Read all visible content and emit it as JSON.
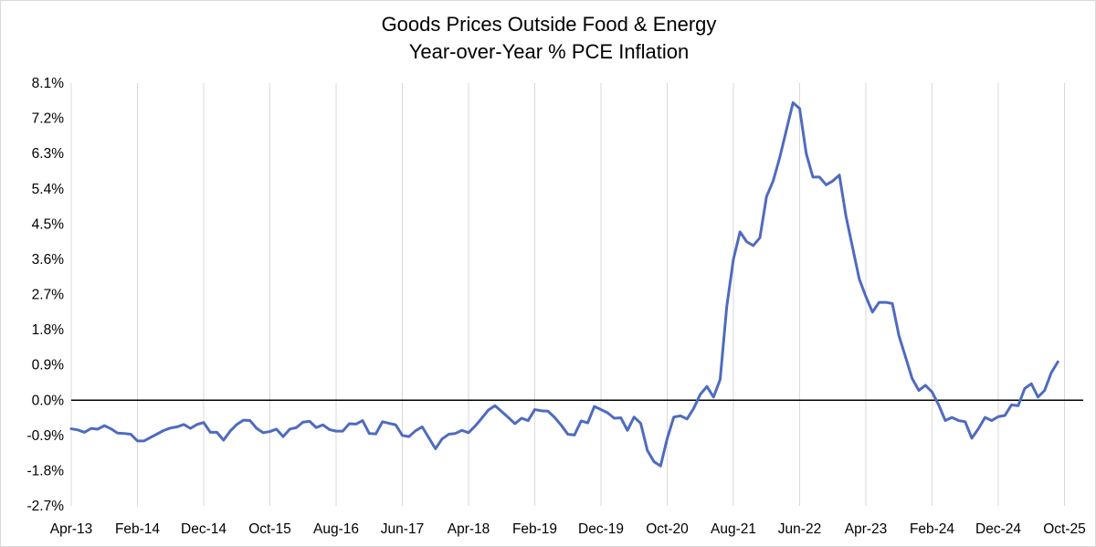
{
  "chart_data": {
    "type": "line",
    "title": [
      "Goods Prices Outside Food & Energy",
      "Year-over-Year % PCE Inflation"
    ],
    "xlabel": "",
    "ylabel": "",
    "x_tick_labels": [
      "Apr-13",
      "Feb-14",
      "Dec-14",
      "Oct-15",
      "Aug-16",
      "Jun-17",
      "Apr-18",
      "Feb-19",
      "Dec-19",
      "Oct-20",
      "Aug-21",
      "Jun-22",
      "Apr-23",
      "Feb-24",
      "Dec-24",
      "Oct-25"
    ],
    "y_tick_labels": [
      "-2.7%",
      "-1.8%",
      "-0.9%",
      "0.0%",
      "0.9%",
      "1.8%",
      "2.7%",
      "3.6%",
      "4.5%",
      "5.4%",
      "6.3%",
      "7.2%",
      "8.1%"
    ],
    "ylim": [
      -2.7,
      8.1
    ],
    "y_unit": "%",
    "grid": {
      "vertical": true,
      "horizontal": false
    },
    "zero_line": true,
    "line_color": "#4f6bbf",
    "series": [
      {
        "x_start": "Apr-13",
        "frequency": "monthly",
        "values": [
          -0.73,
          -0.76,
          -0.82,
          -0.72,
          -0.74,
          -0.65,
          -0.73,
          -0.84,
          -0.85,
          -0.87,
          -1.04,
          -1.04,
          -0.95,
          -0.86,
          -0.77,
          -0.71,
          -0.68,
          -0.62,
          -0.72,
          -0.62,
          -0.57,
          -0.82,
          -0.82,
          -1.02,
          -0.79,
          -0.62,
          -0.51,
          -0.52,
          -0.72,
          -0.83,
          -0.8,
          -0.74,
          -0.93,
          -0.74,
          -0.7,
          -0.56,
          -0.54,
          -0.7,
          -0.63,
          -0.75,
          -0.79,
          -0.79,
          -0.6,
          -0.61,
          -0.52,
          -0.85,
          -0.86,
          -0.55,
          -0.59,
          -0.63,
          -0.9,
          -0.93,
          -0.78,
          -0.68,
          -0.96,
          -1.24,
          -0.99,
          -0.87,
          -0.85,
          -0.77,
          -0.83,
          -0.66,
          -0.46,
          -0.25,
          -0.14,
          -0.29,
          -0.44,
          -0.6,
          -0.46,
          -0.52,
          -0.24,
          -0.27,
          -0.28,
          -0.44,
          -0.64,
          -0.87,
          -0.89,
          -0.53,
          -0.58,
          -0.16,
          -0.24,
          -0.32,
          -0.46,
          -0.45,
          -0.77,
          -0.43,
          -0.59,
          -1.28,
          -1.57,
          -1.68,
          -0.98,
          -0.43,
          -0.4,
          -0.48,
          -0.21,
          0.15,
          0.35,
          0.08,
          0.53,
          2.4,
          3.6,
          4.3,
          4.05,
          3.95,
          4.15,
          5.2,
          5.6,
          6.2,
          6.9,
          7.6,
          7.45,
          6.3,
          5.7,
          5.7,
          5.5,
          5.6,
          5.75,
          4.7,
          3.9,
          3.1,
          2.65,
          2.25,
          2.5,
          2.5,
          2.47,
          1.65,
          1.1,
          0.55,
          0.25,
          0.38,
          0.21,
          -0.12,
          -0.52,
          -0.44,
          -0.52,
          -0.55,
          -0.97,
          -0.73,
          -0.44,
          -0.52,
          -0.42,
          -0.39,
          -0.12,
          -0.14,
          0.3,
          0.42,
          0.08,
          0.25,
          0.7,
          0.98
        ]
      }
    ]
  }
}
